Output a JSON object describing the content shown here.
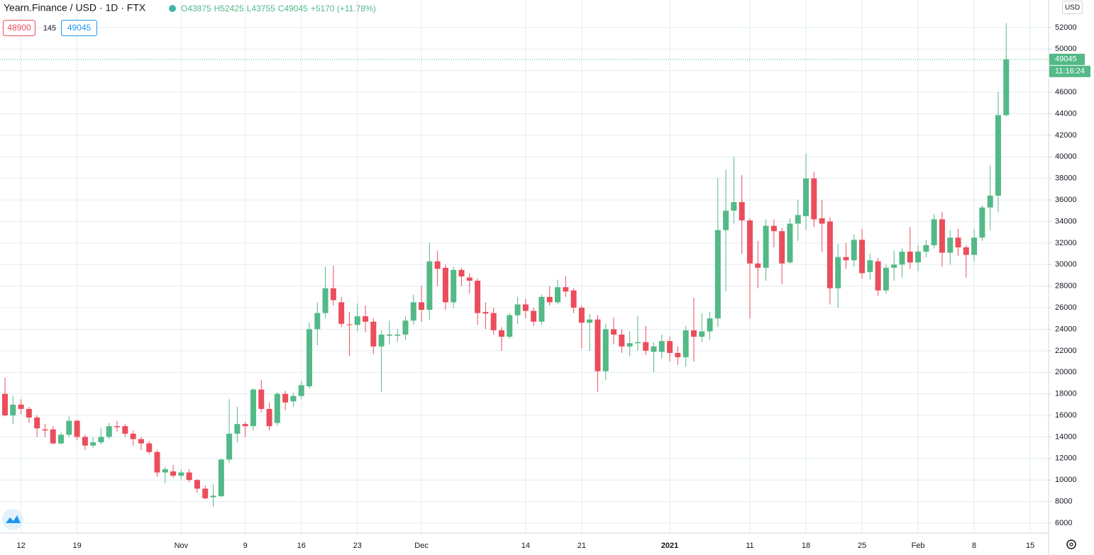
{
  "chart_data": {
    "type": "candlestick",
    "title": "Yearn.Finance / USD · 1D · FTX",
    "legend": [
      "O43875",
      "H52425",
      "L43755",
      "C49045",
      "+5170 (+11.78%)"
    ],
    "sell_price": 48900,
    "spread": 145,
    "buy_price": 49045,
    "currency": "USD",
    "last_price": 49045,
    "countdown": "11:16:24",
    "up_color": "#53b987",
    "down_color": "#eb4d5c",
    "grid": true,
    "ylim": [
      5080,
      54560
    ],
    "yticks": [
      6000,
      8000,
      10000,
      12000,
      14000,
      16000,
      18000,
      20000,
      22000,
      24000,
      26000,
      28000,
      30000,
      32000,
      34000,
      36000,
      38000,
      40000,
      42000,
      44000,
      46000,
      48000,
      50000,
      52000
    ],
    "categories": [
      null,
      null,
      "12",
      null,
      null,
      null,
      null,
      null,
      null,
      "19",
      null,
      null,
      null,
      null,
      null,
      null,
      null,
      null,
      null,
      null,
      null,
      null,
      "Nov",
      null,
      null,
      null,
      null,
      null,
      null,
      null,
      "9",
      null,
      null,
      null,
      null,
      null,
      null,
      "16",
      null,
      null,
      null,
      null,
      null,
      null,
      "23",
      null,
      null,
      null,
      null,
      null,
      null,
      null,
      "Dec",
      null,
      null,
      null,
      null,
      null,
      null,
      null,
      null,
      null,
      null,
      null,
      null,
      "14",
      null,
      null,
      null,
      null,
      null,
      null,
      "21",
      null,
      null,
      null,
      null,
      null,
      null,
      null,
      null,
      null,
      null,
      "2021",
      null,
      null,
      null,
      null,
      null,
      null,
      null,
      null,
      null,
      "11",
      null,
      null,
      null,
      null,
      null,
      null,
      "18",
      null,
      null,
      null,
      null,
      null,
      null,
      "25",
      null,
      null,
      null,
      null,
      null,
      null,
      "Feb",
      null,
      null,
      null,
      null,
      null,
      null,
      "8",
      null,
      null,
      null,
      null,
      null,
      null,
      "15"
    ],
    "open": [
      18000,
      16000,
      17000,
      16600,
      15800,
      14700,
      14700,
      13400,
      14200,
      15500,
      14000,
      13200,
      13500,
      14000,
      15000,
      15000,
      14300,
      13800,
      13400,
      12600,
      10700,
      10800,
      10400,
      10700,
      10000,
      9200,
      8400,
      8500,
      11900,
      14300,
      15200,
      15000,
      18400,
      16600,
      15300,
      18000,
      17300,
      17800,
      18700,
      24000,
      25500,
      27800,
      26500,
      24450,
      24400,
      25200,
      24700,
      22400,
      23400,
      23400,
      23500,
      24800,
      26500,
      25800,
      30300,
      29700,
      26500,
      29500,
      28800,
      28500,
      25600,
      25500,
      23900,
      23300,
      25300,
      26300,
      25700,
      24700,
      27000,
      26500,
      27900,
      27600,
      26000,
      24600,
      24900,
      20100,
      24000,
      23500,
      22400,
      22700,
      22800,
      21900,
      21900,
      22900,
      21800,
      21400,
      23900,
      23300,
      23800,
      25000,
      33200,
      35000,
      35800,
      34100,
      30100,
      29700,
      33600,
      33100,
      30200,
      33800,
      34500,
      38000,
      34300,
      34000,
      27800,
      30700,
      30400,
      32300,
      29300,
      30300,
      27600,
      29700,
      30000,
      31200,
      30200,
      31200,
      31800,
      34200,
      31100,
      32500,
      31600,
      30900,
      32500,
      35300,
      36400,
      43875,
      null,
      null,
      null
    ],
    "high": [
      19500,
      17800,
      17500,
      16800,
      16000,
      15200,
      15000,
      14400,
      15900,
      15600,
      14200,
      14000,
      14800,
      15300,
      15500,
      15200,
      14600,
      14000,
      13600,
      12800,
      11200,
      11400,
      11000,
      11000,
      10100,
      9500,
      9600,
      12000,
      17500,
      16800,
      15400,
      18500,
      19300,
      17200,
      18200,
      18300,
      18100,
      19200,
      24600,
      26500,
      29800,
      29900,
      27000,
      25600,
      26400,
      26200,
      25000,
      23900,
      24800,
      24000,
      25200,
      27200,
      28000,
      32000,
      31300,
      30000,
      29800,
      29700,
      29200,
      28700,
      26500,
      26000,
      24200,
      25500,
      27000,
      26800,
      26000,
      27200,
      28000,
      28600,
      28900,
      27800,
      26200,
      25400,
      25300,
      24500,
      25100,
      24000,
      23800,
      25200,
      24300,
      22800,
      23500,
      23300,
      22400,
      24300,
      26900,
      25500,
      25600,
      38000,
      38800,
      40000,
      38300,
      34300,
      32200,
      34200,
      34200,
      33400,
      34300,
      36000,
      40300,
      38600,
      36000,
      34400,
      31900,
      32000,
      32800,
      33300,
      31000,
      30600,
      30000,
      31300,
      31500,
      33500,
      31800,
      32300,
      34700,
      34900,
      33200,
      33300,
      31800,
      33300,
      35500,
      39200,
      46000,
      52425,
      null,
      null,
      null
    ],
    "low": [
      15900,
      15200,
      16100,
      15300,
      14000,
      14000,
      13300,
      13300,
      14000,
      13700,
      12800,
      13000,
      13300,
      13800,
      14500,
      14000,
      13200,
      12800,
      12400,
      10300,
      9700,
      10200,
      10100,
      9800,
      8800,
      8200,
      7500,
      8400,
      11600,
      13500,
      14000,
      14600,
      16300,
      14600,
      15000,
      16500,
      16800,
      17500,
      18500,
      22500,
      25000,
      26200,
      24200,
      21500,
      23800,
      23700,
      21700,
      18200,
      22600,
      22800,
      23000,
      24400,
      24700,
      24900,
      28000,
      25800,
      26000,
      28000,
      27300,
      24400,
      24000,
      23500,
      22000,
      23100,
      24500,
      25000,
      24300,
      24400,
      26200,
      26300,
      27000,
      25500,
      22200,
      22000,
      18200,
      19300,
      22600,
      21800,
      21500,
      22000,
      21600,
      20000,
      21300,
      21000,
      20700,
      20500,
      21000,
      22800,
      23000,
      24200,
      27500,
      33800,
      31000,
      25000,
      27800,
      28500,
      31600,
      28200,
      30100,
      32200,
      33200,
      33500,
      31200,
      26300,
      26000,
      29600,
      29800,
      28700,
      28600,
      27100,
      27300,
      28500,
      28800,
      29600,
      29400,
      30700,
      31500,
      29800,
      30000,
      30800,
      28800,
      30300,
      32200,
      33200,
      34900,
      43755,
      null,
      null,
      null
    ],
    "close": [
      16000,
      17000,
      16600,
      15800,
      14800,
      14600,
      13400,
      14200,
      15500,
      14000,
      13200,
      13500,
      14000,
      15000,
      14900,
      14300,
      13800,
      13400,
      12600,
      10700,
      11000,
      10400,
      10700,
      10000,
      9200,
      8300,
      8550,
      11900,
      14300,
      15200,
      15000,
      18400,
      16600,
      15000,
      18000,
      17200,
      17800,
      18800,
      24000,
      25500,
      27800,
      26700,
      24500,
      24400,
      25200,
      24700,
      22400,
      23500,
      23500,
      23500,
      24800,
      26500,
      25800,
      30300,
      29600,
      26500,
      29500,
      28900,
      28500,
      25500,
      25450,
      23900,
      23300,
      25300,
      26300,
      25700,
      24700,
      27000,
      26500,
      27900,
      27500,
      26000,
      24600,
      24900,
      20100,
      24000,
      23500,
      22400,
      22700,
      22800,
      22000,
      22400,
      22900,
      21800,
      21400,
      23900,
      23300,
      23800,
      25000,
      33200,
      35000,
      35800,
      34100,
      30100,
      29700,
      33600,
      33100,
      30100,
      33800,
      34600,
      38000,
      34200,
      33800,
      27800,
      30700,
      30400,
      32300,
      29200,
      30400,
      27600,
      29700,
      30000,
      31200,
      30200,
      31200,
      31800,
      34200,
      31100,
      32500,
      31600,
      30900,
      32500,
      35300,
      36400,
      43875,
      49045,
      null,
      null,
      null
    ]
  }
}
